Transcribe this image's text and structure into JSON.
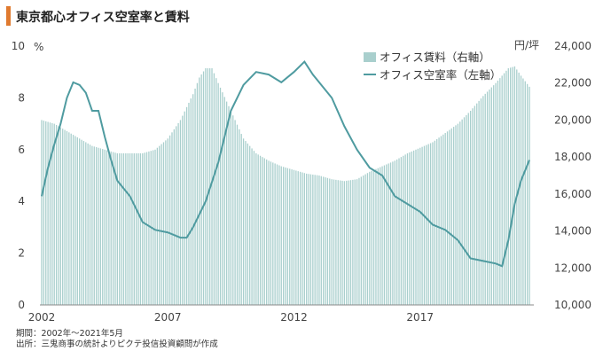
{
  "title": "東京都心オフィス空室率と賃料",
  "notes": {
    "period": "期間：2002年～2021年5月",
    "source": "出所：三鬼商事の統計よりピクテ投信投資顧問が作成"
  },
  "colors": {
    "accent": "#e07a2f",
    "bars": "#a9cfcd",
    "line": "#4f9ba0"
  },
  "chart_data": {
    "type": "bar+line",
    "x_range": [
      "2002-01",
      "2021-05"
    ],
    "x_ticks": [
      "2002",
      "2007",
      "2012",
      "2017"
    ],
    "left_axis": {
      "unit": "%",
      "ylim": [
        0,
        10
      ],
      "ticks": [
        "0",
        "2",
        "4",
        "6",
        "8",
        "10"
      ]
    },
    "right_axis": {
      "unit": "円/坪",
      "ylim": [
        10000,
        24000
      ],
      "ticks": [
        "10,000",
        "12,000",
        "14,000",
        "16,000",
        "18,000",
        "20,000",
        "22,000",
        "24,000"
      ]
    },
    "legend_position": "top-right",
    "grid": false,
    "series": [
      {
        "name": "オフィス賃料（右軸）",
        "type": "bar",
        "axis": "right",
        "points": [
          [
            "2002-01",
            20000
          ],
          [
            "2002-07",
            19800
          ],
          [
            "2003-01",
            19400
          ],
          [
            "2003-07",
            19000
          ],
          [
            "2004-01",
            18600
          ],
          [
            "2004-07",
            18400
          ],
          [
            "2005-01",
            18200
          ],
          [
            "2005-07",
            18200
          ],
          [
            "2006-01",
            18200
          ],
          [
            "2006-07",
            18400
          ],
          [
            "2007-01",
            19000
          ],
          [
            "2007-07",
            20000
          ],
          [
            "2008-01",
            21400
          ],
          [
            "2008-04",
            22300
          ],
          [
            "2008-07",
            22800
          ],
          [
            "2008-10",
            22800
          ],
          [
            "2009-01",
            22000
          ],
          [
            "2009-07",
            20500
          ],
          [
            "2010-01",
            19000
          ],
          [
            "2010-07",
            18200
          ],
          [
            "2011-01",
            17800
          ],
          [
            "2011-07",
            17500
          ],
          [
            "2012-01",
            17300
          ],
          [
            "2012-07",
            17100
          ],
          [
            "2013-01",
            17000
          ],
          [
            "2013-07",
            16800
          ],
          [
            "2014-01",
            16700
          ],
          [
            "2014-07",
            16800
          ],
          [
            "2015-01",
            17200
          ],
          [
            "2015-07",
            17500
          ],
          [
            "2016-01",
            17800
          ],
          [
            "2016-07",
            18200
          ],
          [
            "2017-01",
            18500
          ],
          [
            "2017-07",
            18800
          ],
          [
            "2018-01",
            19300
          ],
          [
            "2018-07",
            19800
          ],
          [
            "2019-01",
            20500
          ],
          [
            "2019-07",
            21300
          ],
          [
            "2020-01",
            22000
          ],
          [
            "2020-07",
            22800
          ],
          [
            "2020-10",
            22900
          ],
          [
            "2021-01",
            22400
          ],
          [
            "2021-05",
            21800
          ]
        ]
      },
      {
        "name": "オフィス空室率（左軸）",
        "type": "line",
        "axis": "left",
        "points": [
          [
            "2002-01",
            4.2
          ],
          [
            "2002-04",
            5.3
          ],
          [
            "2002-07",
            6.2
          ],
          [
            "2002-10",
            7.0
          ],
          [
            "2003-01",
            8.0
          ],
          [
            "2003-04",
            8.6
          ],
          [
            "2003-07",
            8.5
          ],
          [
            "2003-10",
            8.2
          ],
          [
            "2004-01",
            7.5
          ],
          [
            "2004-04",
            7.5
          ],
          [
            "2004-07",
            6.5
          ],
          [
            "2004-10",
            5.6
          ],
          [
            "2005-01",
            4.8
          ],
          [
            "2005-07",
            4.2
          ],
          [
            "2006-01",
            3.2
          ],
          [
            "2006-07",
            2.9
          ],
          [
            "2007-01",
            2.8
          ],
          [
            "2007-07",
            2.6
          ],
          [
            "2007-10",
            2.6
          ],
          [
            "2008-01",
            3.0
          ],
          [
            "2008-07",
            4.0
          ],
          [
            "2009-01",
            5.5
          ],
          [
            "2009-07",
            7.5
          ],
          [
            "2010-01",
            8.5
          ],
          [
            "2010-07",
            9.0
          ],
          [
            "2011-01",
            8.9
          ],
          [
            "2011-07",
            8.6
          ],
          [
            "2012-01",
            9.0
          ],
          [
            "2012-06",
            9.4
          ],
          [
            "2012-10",
            8.9
          ],
          [
            "2013-01",
            8.6
          ],
          [
            "2013-07",
            8.0
          ],
          [
            "2014-01",
            6.9
          ],
          [
            "2014-07",
            6.0
          ],
          [
            "2015-01",
            5.3
          ],
          [
            "2015-07",
            5.0
          ],
          [
            "2016-01",
            4.2
          ],
          [
            "2016-07",
            3.9
          ],
          [
            "2017-01",
            3.6
          ],
          [
            "2017-07",
            3.1
          ],
          [
            "2018-01",
            2.9
          ],
          [
            "2018-07",
            2.5
          ],
          [
            "2019-01",
            1.8
          ],
          [
            "2019-07",
            1.7
          ],
          [
            "2020-01",
            1.6
          ],
          [
            "2020-04",
            1.5
          ],
          [
            "2020-07",
            2.5
          ],
          [
            "2020-10",
            3.9
          ],
          [
            "2021-01",
            4.8
          ],
          [
            "2021-05",
            5.6
          ]
        ]
      }
    ]
  }
}
